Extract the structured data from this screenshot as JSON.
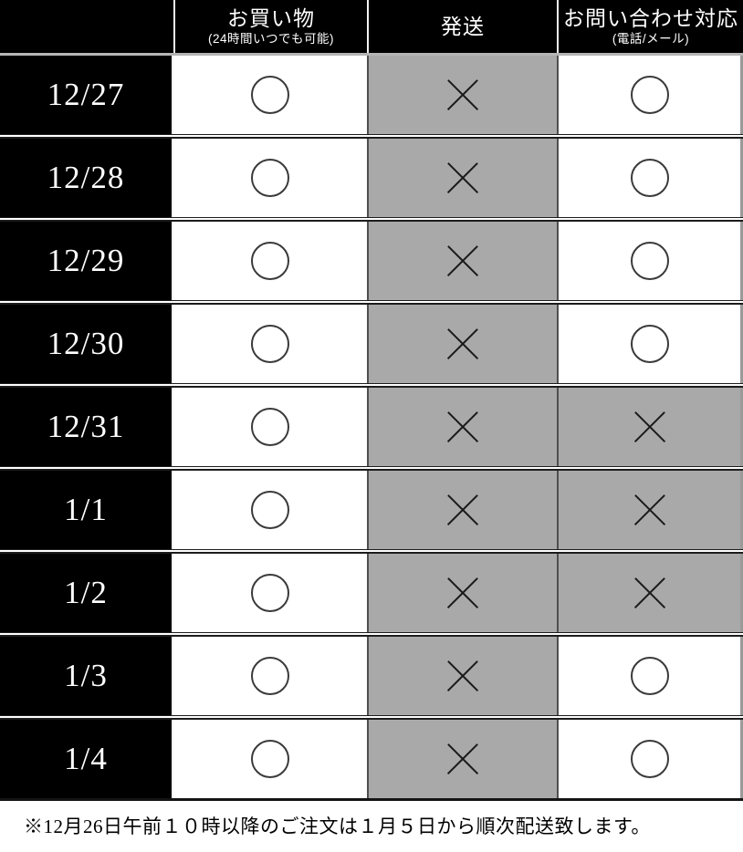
{
  "table": {
    "header": {
      "corner_label": "",
      "columns": [
        {
          "label": "お買い物",
          "sublabel": "(24時間いつでも可能)"
        },
        {
          "label": "発送",
          "sublabel": ""
        },
        {
          "label": "お問い合わせ対応",
          "sublabel": "(電話/メール)"
        }
      ]
    },
    "marks": {
      "available_icon": "circle",
      "unavailable_icon": "cross",
      "available_glyph": "○",
      "unavailable_glyph": "×"
    },
    "rows": [
      {
        "date": "12/27",
        "cells": [
          {
            "mark": "circle",
            "highlight": false
          },
          {
            "mark": "cross",
            "highlight": true
          },
          {
            "mark": "circle",
            "highlight": false
          }
        ]
      },
      {
        "date": "12/28",
        "cells": [
          {
            "mark": "circle",
            "highlight": false
          },
          {
            "mark": "cross",
            "highlight": true
          },
          {
            "mark": "circle",
            "highlight": false
          }
        ]
      },
      {
        "date": "12/29",
        "cells": [
          {
            "mark": "circle",
            "highlight": false
          },
          {
            "mark": "cross",
            "highlight": true
          },
          {
            "mark": "circle",
            "highlight": false
          }
        ]
      },
      {
        "date": "12/30",
        "cells": [
          {
            "mark": "circle",
            "highlight": false
          },
          {
            "mark": "cross",
            "highlight": true
          },
          {
            "mark": "circle",
            "highlight": false
          }
        ]
      },
      {
        "date": "12/31",
        "cells": [
          {
            "mark": "circle",
            "highlight": false
          },
          {
            "mark": "cross",
            "highlight": true
          },
          {
            "mark": "cross",
            "highlight": true
          }
        ]
      },
      {
        "date": "1/1",
        "cells": [
          {
            "mark": "circle",
            "highlight": false
          },
          {
            "mark": "cross",
            "highlight": true
          },
          {
            "mark": "cross",
            "highlight": true
          }
        ]
      },
      {
        "date": "1/2",
        "cells": [
          {
            "mark": "circle",
            "highlight": false
          },
          {
            "mark": "cross",
            "highlight": true
          },
          {
            "mark": "cross",
            "highlight": true
          }
        ]
      },
      {
        "date": "1/3",
        "cells": [
          {
            "mark": "circle",
            "highlight": false
          },
          {
            "mark": "cross",
            "highlight": true
          },
          {
            "mark": "circle",
            "highlight": false
          }
        ]
      },
      {
        "date": "1/4",
        "cells": [
          {
            "mark": "circle",
            "highlight": false
          },
          {
            "mark": "cross",
            "highlight": true
          },
          {
            "mark": "circle",
            "highlight": false
          }
        ]
      }
    ]
  },
  "footer": {
    "note": "※12月26日午前１０時以降のご注文は１月５日から順次配送致します。"
  },
  "colors": {
    "header_bg": "#000000",
    "date_cell_bg": "#000000",
    "unavailable_bg": "#a9a9a9",
    "available_bg": "#ffffff",
    "mark_color": "#1a1a1a",
    "header_text": "#ffffff"
  }
}
